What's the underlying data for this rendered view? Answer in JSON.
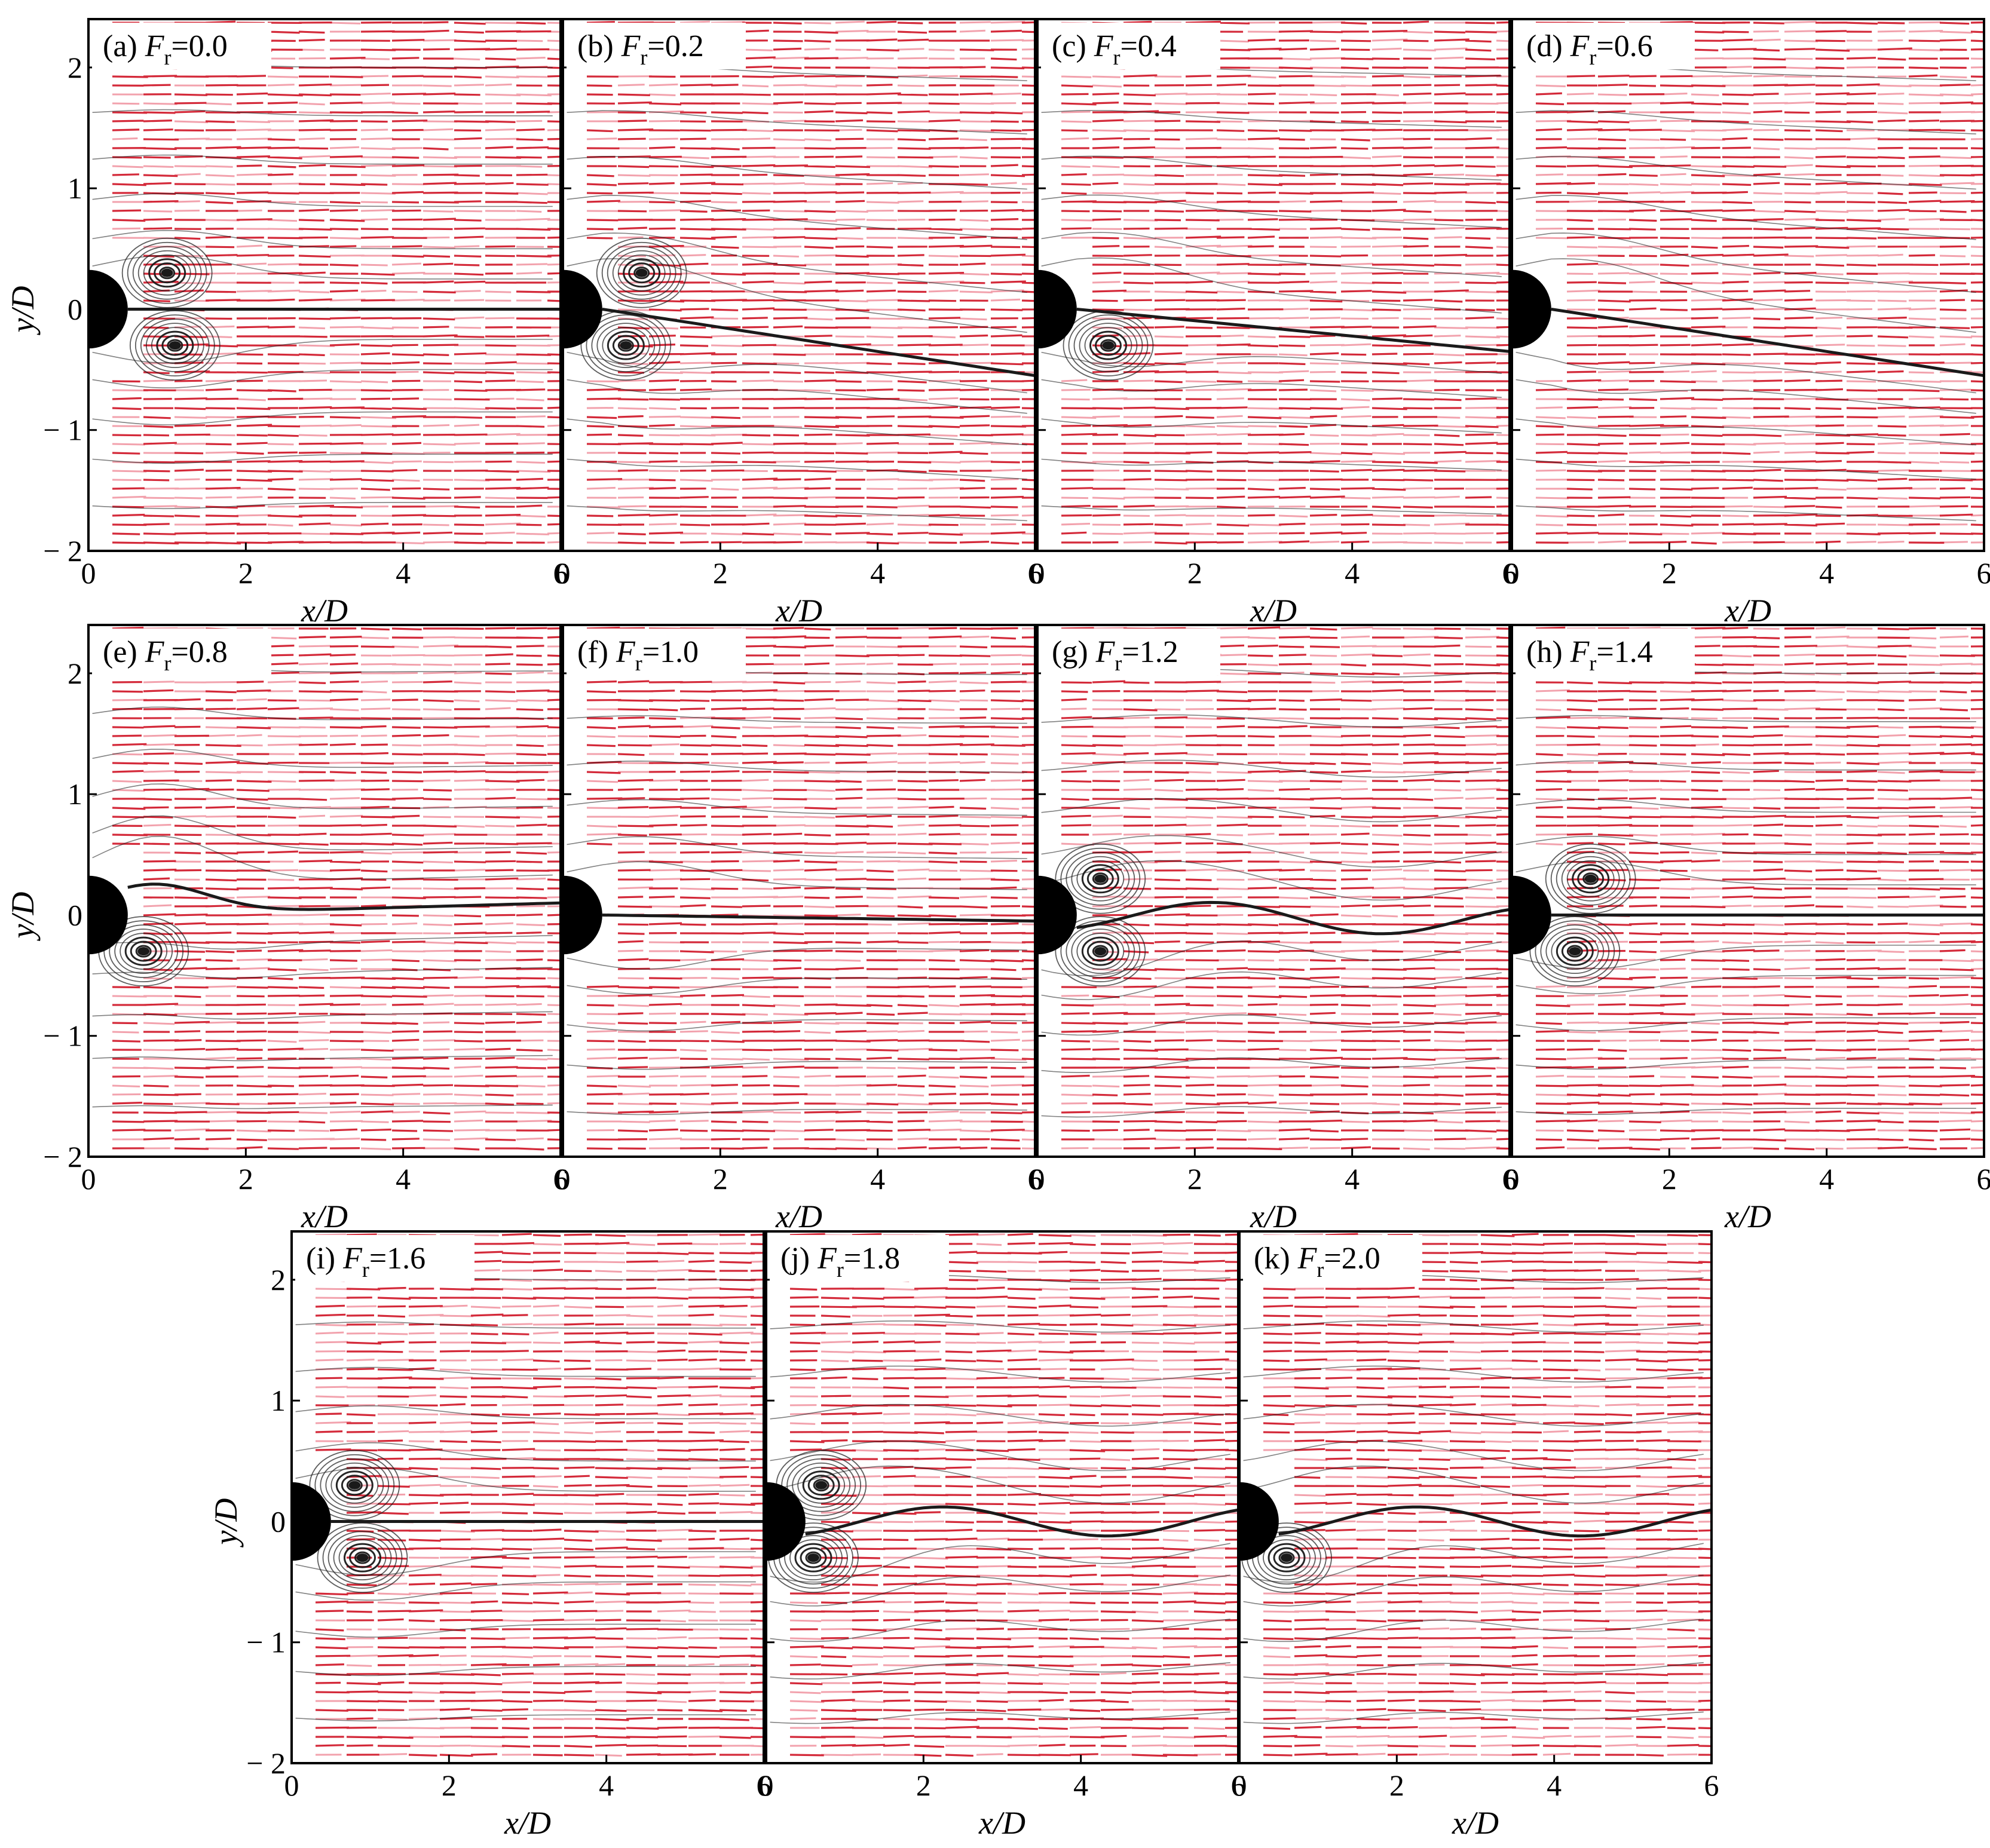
{
  "figure": {
    "colors": {
      "vector": "#d42a3a",
      "vector_light": "#f2a2ad",
      "streamline": "#1a1a1a",
      "cylinder": "#000000",
      "frame": "#000000"
    },
    "x_axis_label": "x/D",
    "y_axis_label": "y/D",
    "x_ticks": [
      "0",
      "2",
      "4",
      "6"
    ],
    "y_ticks": [
      "2",
      "1",
      "0",
      "− 1",
      "− 2"
    ],
    "froude_symbol": "F",
    "froude_subscript": "r"
  },
  "chart_data": {
    "type": "vector-field",
    "xlim": [
      0,
      6
    ],
    "ylim": [
      -2,
      2.4
    ],
    "xlabel": "x/D",
    "ylabel": "y/D",
    "x_tick_values": [
      0,
      2,
      4,
      6
    ],
    "y_tick_values": [
      -2,
      -1,
      0,
      1,
      2
    ],
    "panels": [
      {
        "id": "a",
        "tag": "(a)",
        "Fr": "0.0",
        "wake": "symmetric",
        "vortex_upper_x": 1.0,
        "vortex_lower_x": 1.1,
        "wake_end_y": 0.0
      },
      {
        "id": "b",
        "tag": "(b)",
        "Fr": "0.2",
        "wake": "lower",
        "vortex_upper_x": 1.0,
        "vortex_lower_x": 0.8,
        "wake_end_y": -0.55
      },
      {
        "id": "c",
        "tag": "(c)",
        "Fr": "0.4",
        "wake": "lower",
        "vortex_upper_x": null,
        "vortex_lower_x": 0.9,
        "wake_end_y": -0.35
      },
      {
        "id": "d",
        "tag": "(d)",
        "Fr": "0.6",
        "wake": "lower",
        "vortex_upper_x": null,
        "vortex_lower_x": null,
        "wake_end_y": -0.55
      },
      {
        "id": "e",
        "tag": "(e)",
        "Fr": "0.8",
        "wake": "upper",
        "vortex_upper_x": null,
        "vortex_lower_x": 0.7,
        "wake_end_y": 0.1
      },
      {
        "id": "f",
        "tag": "(f)",
        "Fr": "1.0",
        "wake": "flat",
        "vortex_upper_x": null,
        "vortex_lower_x": null,
        "wake_end_y": -0.05
      },
      {
        "id": "g",
        "tag": "(g)",
        "Fr": "1.2",
        "wake": "wavy",
        "vortex_upper_x": 0.8,
        "vortex_lower_x": 0.8,
        "wake_end_y": -0.05
      },
      {
        "id": "h",
        "tag": "(h)",
        "Fr": "1.4",
        "wake": "symmetric",
        "vortex_upper_x": 1.0,
        "vortex_lower_x": 0.8,
        "wake_end_y": 0.0
      },
      {
        "id": "i",
        "tag": "(i)",
        "Fr": "1.6",
        "wake": "symmetric",
        "vortex_upper_x": 0.8,
        "vortex_lower_x": 0.9,
        "wake_end_y": 0.0
      },
      {
        "id": "j",
        "tag": "(j)",
        "Fr": "1.8",
        "wake": "wavy",
        "vortex_upper_x": 0.7,
        "vortex_lower_x": 0.6,
        "wake_end_y": 0.0
      },
      {
        "id": "k",
        "tag": "(k)",
        "Fr": "2.0",
        "wake": "wavy",
        "vortex_upper_x": null,
        "vortex_lower_x": 0.6,
        "wake_end_y": 0.0
      }
    ]
  }
}
